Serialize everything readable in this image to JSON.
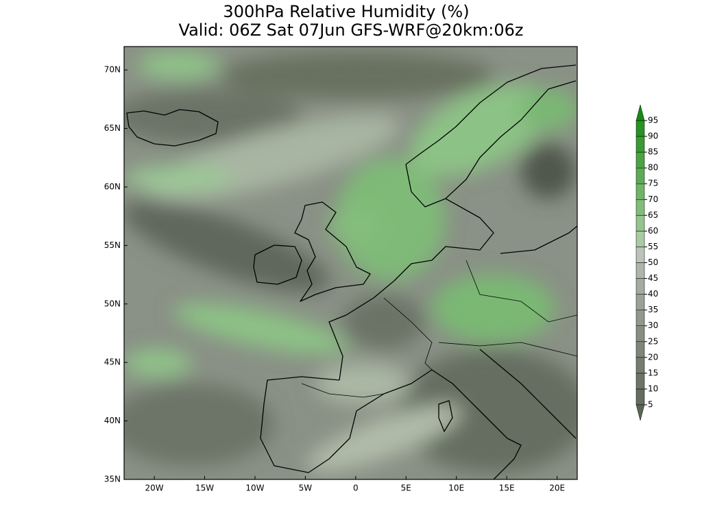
{
  "map": {
    "title": "300hPa Relative Humidity (%)",
    "subtitle": "Valid: 06Z Sat 07Jun GFS-WRF@20km:06z",
    "lonlim": [
      -23,
      22
    ],
    "latlim": [
      35,
      72
    ],
    "lon_ticks": [
      {
        "value": -20,
        "label": "20W"
      },
      {
        "value": -15,
        "label": "15W"
      },
      {
        "value": -10,
        "label": "10W"
      },
      {
        "value": -5,
        "label": "5W"
      },
      0,
      {
        "value": 5,
        "label": "5E"
      },
      {
        "value": 10,
        "label": "10E"
      },
      {
        "value": 15,
        "label": "15E"
      },
      {
        "value": 20,
        "label": "20E"
      }
    ],
    "lat_ticks": [
      {
        "value": 35,
        "label": "35N"
      },
      {
        "value": 40,
        "label": "40N"
      },
      {
        "value": 45,
        "label": "45N"
      },
      {
        "value": 50,
        "label": "50N"
      },
      {
        "value": 55,
        "label": "55N"
      },
      {
        "value": 60,
        "label": "60N"
      },
      {
        "value": 65,
        "label": "65N"
      },
      {
        "value": 70,
        "label": "70N"
      }
    ]
  },
  "colorbar": {
    "levels": [
      5,
      10,
      15,
      20,
      25,
      30,
      35,
      40,
      45,
      50,
      55,
      60,
      65,
      70,
      75,
      80,
      85,
      90,
      95
    ],
    "colors": [
      "#5c6657",
      "#646d60",
      "#6c7568",
      "#757d71",
      "#7e867a",
      "#878f83",
      "#91988d",
      "#9aa197",
      "#a4aba1",
      "#afb5ab",
      "#bcc3b8",
      "#a8cba2",
      "#95c48e",
      "#82bc7b",
      "#70b468",
      "#5eab56",
      "#4ca344",
      "#3a9a33",
      "#289222",
      "#168a12"
    ]
  }
}
